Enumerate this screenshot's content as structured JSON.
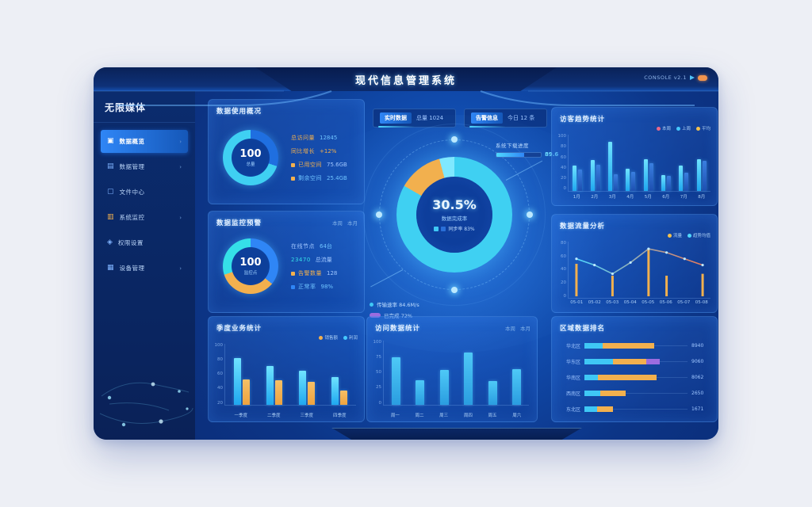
{
  "window": {
    "title": "现代信息管理系统",
    "header_right_text": "CONSOLE v2.1"
  },
  "sidebar": {
    "brand": "无限媒体",
    "items": [
      {
        "label": "数据概览",
        "icon": "dashboard-icon",
        "icon_color": "#ffffff",
        "active": true,
        "chevron": true
      },
      {
        "label": "数据管理",
        "icon": "database-icon",
        "icon_color": "#7fb3ff",
        "active": false,
        "chevron": true
      },
      {
        "label": "文件中心",
        "icon": "folder-icon",
        "icon_color": "#7fb3ff",
        "active": false,
        "chevron": false
      },
      {
        "label": "系统监控",
        "icon": "monitor-icon",
        "icon_color": "#f2b04e",
        "active": false,
        "chevron": true
      },
      {
        "label": "权限设置",
        "icon": "shield-icon",
        "icon_color": "#7fb3ff",
        "active": false,
        "chevron": false
      },
      {
        "label": "设备管理",
        "icon": "device-icon",
        "icon_color": "#7fb3ff",
        "active": false,
        "chevron": true
      }
    ]
  },
  "center": {
    "pills": [
      {
        "chip": "实时数据",
        "text": "总量 1024"
      },
      {
        "chip": "告警信息",
        "text": "今日 12 条"
      }
    ],
    "gauge": {
      "value": "30.5%",
      "sub": "数据完成率",
      "legend_colors": [
        "#3fc8f5",
        "#2a6fd8"
      ],
      "legend_text": "同步率 83%",
      "donut": {
        "from": 0,
        "segments": [
          {
            "color": "#3fd0f2",
            "pct": 83.3
          },
          {
            "color": "#f2b04e",
            "pct": 12.5
          },
          {
            "color": "#7fe8ff",
            "pct": 4.2
          }
        ]
      }
    },
    "annotation_top": {
      "label": "系统下载进度",
      "fill_pct": 62,
      "value": "89.6"
    },
    "annotation_bottom": {
      "rows": [
        {
          "marker": "dot",
          "color": "#3fc8f5",
          "text": "传输速率 84.6M/s"
        },
        {
          "marker": "pill",
          "color": "#9b6ce0",
          "text": "已完成 72%"
        }
      ]
    }
  },
  "panels": {
    "usage": {
      "title": "数据使用概况",
      "donut": {
        "from": 0,
        "segments": [
          {
            "color": "#1f6fe0",
            "pct": 30
          },
          {
            "color": "#3fd0f2",
            "pct": 70
          }
        ]
      },
      "donut_value": "100",
      "donut_sub": "总量",
      "stats": [
        {
          "label": "总访问量",
          "lc": "#f2b04e",
          "value": "12845",
          "vc": "#6fc3ff"
        },
        {
          "label": "同比增长",
          "lc": "#f2b04e",
          "value": "+12%",
          "vc": "#f2b04e"
        },
        {
          "label": "已用空间",
          "lc": "#f2b04e",
          "value": "75.6GB",
          "vc": "#9fc6ff",
          "dot": "#f2b04e"
        },
        {
          "label": "剩余空间",
          "lc": "#6fc3ff",
          "value": "25.4GB",
          "vc": "#6fc3ff",
          "dot": "#f2b04e"
        }
      ]
    },
    "monitor": {
      "title": "数据监控预警",
      "links": [
        "本周",
        "本月"
      ],
      "donut": {
        "from": 0,
        "segments": [
          {
            "color": "#2f86f6",
            "pct": 36
          },
          {
            "color": "#f2b04e",
            "pct": 34
          },
          {
            "color": "#35e0e8",
            "pct": 30
          }
        ]
      },
      "donut_value": "100",
      "donut_sub": "监控点",
      "stats": [
        {
          "label": "在线节点",
          "lc": "#9fc6ff",
          "value": "64台",
          "vc": "#6fc3ff"
        },
        {
          "label": "23470",
          "lc": "#35e0e8",
          "value": "总流量",
          "vc": "#9fc6ff"
        },
        {
          "label": "告警数量",
          "lc": "#f2b04e",
          "value": "128",
          "vc": "#9fc6ff",
          "dot": "#f2b04e"
        },
        {
          "label": "正常率",
          "lc": "#6fc3ff",
          "value": "98%",
          "vc": "#6fc3ff",
          "dot": "#2f86f6"
        }
      ]
    },
    "visitors": {
      "title": "访客趋势统计",
      "legend": [
        {
          "label": "本周",
          "color": "#e8688a"
        },
        {
          "label": "上周",
          "color": "#45c8ff"
        },
        {
          "label": "平均",
          "color": "#f2c14e"
        }
      ],
      "chart": {
        "type": "bar",
        "max": 100,
        "yticks": [
          "100",
          "80",
          "60",
          "40",
          "20",
          "0"
        ],
        "categories": [
          "1月",
          "2月",
          "3月",
          "4月",
          "5月",
          "6月",
          "7月",
          "8月"
        ],
        "series": [
          {
            "name": "本周",
            "color": "#6fe3ff",
            "color2": "#1fa8f0",
            "values": [
              45,
              55,
              88,
              40,
              57,
              28,
              45,
              57
            ]
          },
          {
            "name": "上周",
            "color": "#3a7fe0",
            "color2": "#1d4fb0",
            "values": [
              38,
              46,
              30,
              34,
              50,
              27,
              33,
              54
            ]
          }
        ]
      }
    },
    "flow": {
      "title": "数据流量分析",
      "legend": [
        {
          "label": "流量",
          "color": "#f2c14e"
        },
        {
          "label": "趋势均值",
          "color": "#4fd8ff"
        }
      ],
      "chart": {
        "type": "line+bar",
        "max": 80,
        "yticks": [
          "80",
          "60",
          "40",
          "20",
          "0"
        ],
        "categories": [
          "05-01",
          "05-02",
          "05-03",
          "05-04",
          "05-05",
          "05-06",
          "05-07",
          "05-08"
        ],
        "bars": {
          "color": "#f2b04e",
          "values": [
            52,
            0,
            33,
            0,
            75,
            33,
            0,
            36
          ]
        },
        "line": {
          "from": "#4fd8ff",
          "to": "#e87a5a",
          "values": [
            60,
            50,
            36,
            54,
            76,
            70,
            60,
            50
          ]
        }
      }
    },
    "quarter": {
      "title": "季度业务统计",
      "legend": [
        {
          "label": "销售额",
          "color": "#f2b04e"
        },
        {
          "label": "利润",
          "color": "#45c8ff"
        }
      ],
      "chart": {
        "type": "bar",
        "max": 100,
        "yticks": [
          "100",
          "80",
          "60",
          "40",
          "20"
        ],
        "categories": [
          "一季度",
          "二季度",
          "三季度",
          "四季度"
        ],
        "series": [
          {
            "name": "销售额",
            "color": "#6fe3ff",
            "color2": "#1fa8f0",
            "values": [
              76,
              64,
              56,
              46
            ]
          },
          {
            "name": "利润",
            "color": "#f5c067",
            "color2": "#eda33f",
            "values": [
              42,
              40,
              38,
              24
            ]
          }
        ]
      }
    },
    "visits": {
      "title": "访问数据统计",
      "links": [
        "本周",
        "本月"
      ],
      "chart": {
        "type": "bar",
        "max": 100,
        "yticks": [
          "100",
          "75",
          "50",
          "25",
          "0"
        ],
        "categories": [
          "周一",
          "周二",
          "周三",
          "周四",
          "周五",
          "周六"
        ],
        "series": [
          {
            "name": "访问量",
            "color": "#4ec9f7",
            "color2": "#2a9de0",
            "values": [
              74,
              38,
              54,
              82,
              37,
              56
            ]
          }
        ]
      }
    },
    "region": {
      "title": "区域数据排名",
      "chart": {
        "type": "hbar",
        "rows": [
          {
            "label": "华北区",
            "value": "8940",
            "segments": [
              {
                "color": "#3fc8f5",
                "pct": 18
              },
              {
                "color": "#f2b04e",
                "pct": 50
              }
            ]
          },
          {
            "label": "华东区",
            "value": "9060",
            "segments": [
              {
                "color": "#3fc8f5",
                "pct": 28
              },
              {
                "color": "#f2b04e",
                "pct": 32
              },
              {
                "color": "#9b6ce0",
                "pct": 13
              }
            ]
          },
          {
            "label": "华南区",
            "value": "8062",
            "segments": [
              {
                "color": "#3fc8f5",
                "pct": 13
              },
              {
                "color": "#f2b04e",
                "pct": 57
              }
            ]
          },
          {
            "label": "西南区",
            "value": "2650",
            "segments": [
              {
                "color": "#3fc8f5",
                "pct": 15
              },
              {
                "color": "#f2b04e",
                "pct": 25
              }
            ]
          },
          {
            "label": "东北区",
            "value": "1671",
            "segments": [
              {
                "color": "#3fc8f5",
                "pct": 12
              },
              {
                "color": "#f2b04e",
                "pct": 16
              }
            ]
          }
        ]
      }
    }
  }
}
